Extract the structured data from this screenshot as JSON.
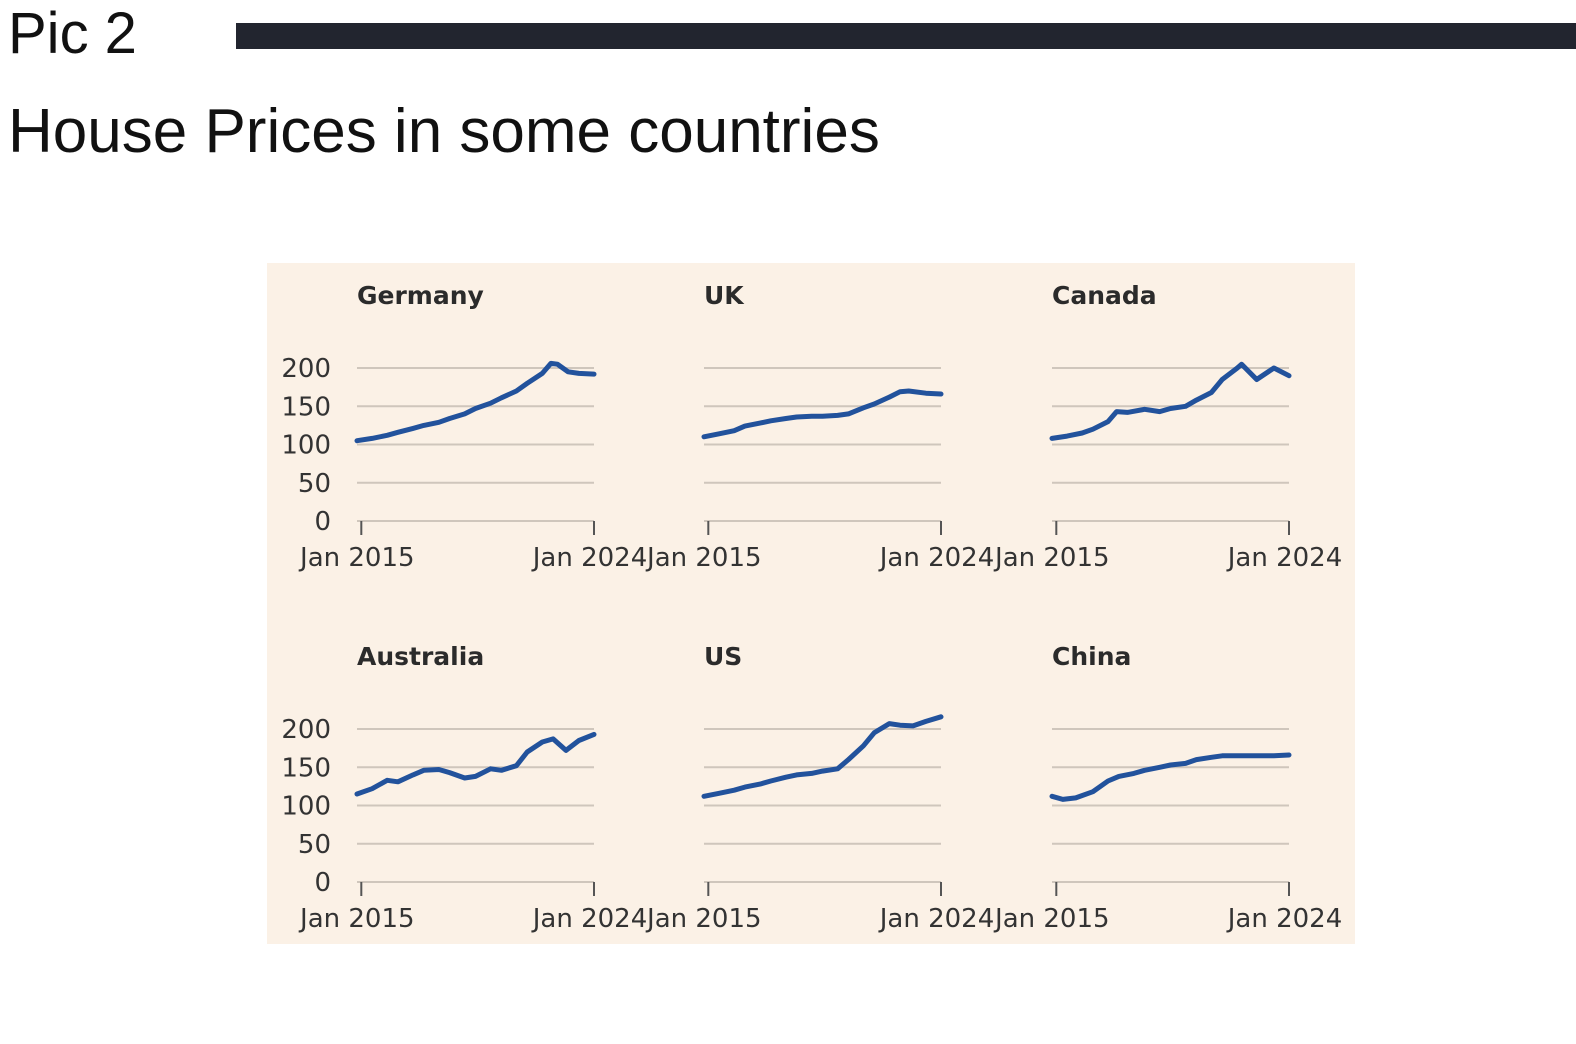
{
  "header": {
    "pic_label": "Pic 2",
    "title": "House Prices in some countries"
  },
  "colors": {
    "panel_background": "#fbf1e6",
    "line": "#22529c",
    "grid": "#cfc6bc",
    "top_bar": "#22252f"
  },
  "chart_data": [
    {
      "type": "line",
      "title": "Germany",
      "x_tick_labels": [
        "Jan 2015",
        "Jan 2024"
      ],
      "y_ticks": [
        0,
        50,
        100,
        150,
        200
      ],
      "ylim": [
        0,
        200
      ],
      "xlim": [
        "2014-11",
        "2024-01"
      ],
      "x": [
        "2014-11",
        "2015-06",
        "2016-01",
        "2016-06",
        "2017-01",
        "2017-06",
        "2018-01",
        "2018-06",
        "2019-01",
        "2019-06",
        "2020-01",
        "2020-06",
        "2021-01",
        "2021-06",
        "2022-01",
        "2022-05",
        "2022-08",
        "2023-01",
        "2023-06",
        "2024-01"
      ],
      "y": [
        105,
        108,
        112,
        116,
        121,
        125,
        129,
        134,
        140,
        147,
        154,
        161,
        170,
        180,
        193,
        206,
        205,
        195,
        193,
        192
      ]
    },
    {
      "type": "line",
      "title": "UK",
      "x_tick_labels": [
        "Jan 2015",
        "Jan 2024"
      ],
      "y_ticks": [
        0,
        50,
        100,
        150,
        200
      ],
      "ylim": [
        0,
        200
      ],
      "xlim": [
        "2014-11",
        "2024-01"
      ],
      "x": [
        "2014-11",
        "2015-06",
        "2016-01",
        "2016-06",
        "2017-01",
        "2017-06",
        "2018-01",
        "2018-06",
        "2019-01",
        "2019-06",
        "2020-01",
        "2020-06",
        "2021-01",
        "2021-06",
        "2022-01",
        "2022-06",
        "2022-10",
        "2023-06",
        "2024-01"
      ],
      "y": [
        110,
        114,
        118,
        124,
        128,
        131,
        134,
        136,
        137,
        137,
        138,
        140,
        148,
        153,
        162,
        169,
        170,
        167,
        166
      ]
    },
    {
      "type": "line",
      "title": "Canada",
      "x_tick_labels": [
        "Jan 2015",
        "Jan 2024"
      ],
      "y_ticks": [
        0,
        50,
        100,
        150,
        200
      ],
      "ylim": [
        0,
        200
      ],
      "xlim": [
        "2014-11",
        "2024-01"
      ],
      "x": [
        "2014-11",
        "2015-06",
        "2016-01",
        "2016-06",
        "2017-01",
        "2017-05",
        "2017-10",
        "2018-06",
        "2019-01",
        "2019-06",
        "2020-01",
        "2020-06",
        "2021-01",
        "2021-06",
        "2022-01",
        "2022-03",
        "2022-10",
        "2023-06",
        "2024-01"
      ],
      "y": [
        108,
        111,
        115,
        120,
        130,
        143,
        142,
        146,
        143,
        147,
        150,
        158,
        168,
        185,
        200,
        205,
        185,
        200,
        190
      ]
    },
    {
      "type": "line",
      "title": "Australia",
      "x_tick_labels": [
        "Jan 2015",
        "Jan 2024"
      ],
      "y_ticks": [
        0,
        50,
        100,
        150,
        200
      ],
      "ylim": [
        0,
        200
      ],
      "xlim": [
        "2014-11",
        "2024-01"
      ],
      "x": [
        "2014-11",
        "2015-06",
        "2016-01",
        "2016-06",
        "2017-01",
        "2017-06",
        "2018-01",
        "2018-06",
        "2019-01",
        "2019-06",
        "2020-01",
        "2020-06",
        "2021-01",
        "2021-06",
        "2022-01",
        "2022-06",
        "2022-12",
        "2023-06",
        "2024-01"
      ],
      "y": [
        115,
        122,
        133,
        131,
        140,
        146,
        147,
        143,
        136,
        138,
        148,
        146,
        152,
        170,
        183,
        187,
        172,
        185,
        193
      ]
    },
    {
      "type": "line",
      "title": "US",
      "x_tick_labels": [
        "Jan 2015",
        "Jan 2024"
      ],
      "y_ticks": [
        0,
        50,
        100,
        150,
        200
      ],
      "ylim": [
        0,
        200
      ],
      "xlim": [
        "2014-11",
        "2024-01"
      ],
      "x": [
        "2014-11",
        "2015-06",
        "2016-01",
        "2016-06",
        "2017-01",
        "2017-06",
        "2018-01",
        "2018-06",
        "2019-01",
        "2019-06",
        "2020-01",
        "2020-06",
        "2021-01",
        "2021-06",
        "2022-01",
        "2022-06",
        "2022-12",
        "2023-06",
        "2024-01"
      ],
      "y": [
        112,
        116,
        120,
        124,
        128,
        132,
        137,
        140,
        142,
        145,
        148,
        160,
        178,
        195,
        207,
        205,
        204,
        210,
        216
      ]
    },
    {
      "type": "line",
      "title": "China",
      "x_tick_labels": [
        "Jan 2015",
        "Jan 2024"
      ],
      "y_ticks": [
        0,
        50,
        100,
        150,
        200
      ],
      "ylim": [
        0,
        200
      ],
      "xlim": [
        "2014-11",
        "2024-01"
      ],
      "x": [
        "2014-11",
        "2015-04",
        "2015-10",
        "2016-06",
        "2017-01",
        "2017-06",
        "2018-01",
        "2018-06",
        "2019-01",
        "2019-06",
        "2020-01",
        "2020-06",
        "2021-01",
        "2021-06",
        "2022-01",
        "2022-06",
        "2023-01",
        "2023-06",
        "2024-01"
      ],
      "y": [
        112,
        108,
        110,
        118,
        132,
        138,
        142,
        146,
        150,
        153,
        155,
        160,
        163,
        165,
        165,
        165,
        165,
        165,
        166
      ]
    }
  ]
}
